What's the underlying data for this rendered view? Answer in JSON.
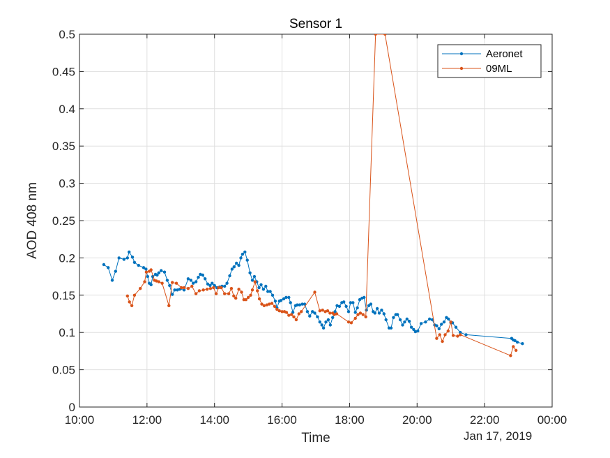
{
  "chart_data": {
    "type": "line",
    "title": "Sensor 1",
    "xlabel": "Time",
    "ylabel": "AOD 408 nm",
    "date_label": "Jan 17, 2019",
    "x_unit": "hours",
    "xlim": [
      10,
      24
    ],
    "ylim": [
      0,
      0.5
    ],
    "x_ticks": [
      10,
      12,
      14,
      16,
      18,
      20,
      22,
      24
    ],
    "x_tick_labels": [
      "10:00",
      "12:00",
      "14:00",
      "16:00",
      "18:00",
      "20:00",
      "22:00",
      "00:00"
    ],
    "y_ticks": [
      0,
      0.05,
      0.1,
      0.15,
      0.2,
      0.25,
      0.3,
      0.35,
      0.4,
      0.45,
      0.5
    ],
    "y_tick_labels": [
      "0",
      "0.05",
      "0.1",
      "0.15",
      "0.2",
      "0.25",
      "0.3",
      "0.35",
      "0.4",
      "0.45",
      "0.5"
    ],
    "grid": true,
    "legend_position": "top-right",
    "series": [
      {
        "name": "Aeronet",
        "color": "#0072BD",
        "points": [
          [
            10.72,
            0.191
          ],
          [
            10.85,
            0.187
          ],
          [
            10.97,
            0.17
          ],
          [
            11.07,
            0.182
          ],
          [
            11.17,
            0.2
          ],
          [
            11.32,
            0.198
          ],
          [
            11.42,
            0.2
          ],
          [
            11.47,
            0.208
          ],
          [
            11.57,
            0.201
          ],
          [
            11.63,
            0.194
          ],
          [
            11.75,
            0.19
          ],
          [
            11.9,
            0.187
          ],
          [
            11.97,
            0.185
          ],
          [
            12.02,
            0.175
          ],
          [
            12.07,
            0.166
          ],
          [
            12.12,
            0.164
          ],
          [
            12.17,
            0.175
          ],
          [
            12.25,
            0.178
          ],
          [
            12.3,
            0.177
          ],
          [
            12.35,
            0.18
          ],
          [
            12.42,
            0.183
          ],
          [
            12.52,
            0.181
          ],
          [
            12.6,
            0.17
          ],
          [
            12.67,
            0.163
          ],
          [
            12.75,
            0.151
          ],
          [
            12.82,
            0.157
          ],
          [
            12.9,
            0.157
          ],
          [
            12.97,
            0.158
          ],
          [
            13.1,
            0.157
          ],
          [
            13.22,
            0.172
          ],
          [
            13.3,
            0.17
          ],
          [
            13.37,
            0.166
          ],
          [
            13.45,
            0.168
          ],
          [
            13.52,
            0.174
          ],
          [
            13.58,
            0.178
          ],
          [
            13.65,
            0.177
          ],
          [
            13.72,
            0.172
          ],
          [
            13.8,
            0.165
          ],
          [
            13.87,
            0.163
          ],
          [
            13.93,
            0.166
          ],
          [
            14.0,
            0.163
          ],
          [
            14.07,
            0.16
          ],
          [
            14.15,
            0.161
          ],
          [
            14.22,
            0.162
          ],
          [
            14.3,
            0.162
          ],
          [
            14.37,
            0.166
          ],
          [
            14.45,
            0.176
          ],
          [
            14.52,
            0.185
          ],
          [
            14.58,
            0.188
          ],
          [
            14.65,
            0.193
          ],
          [
            14.72,
            0.19
          ],
          [
            14.78,
            0.2
          ],
          [
            14.83,
            0.205
          ],
          [
            14.9,
            0.208
          ],
          [
            14.97,
            0.197
          ],
          [
            15.05,
            0.18
          ],
          [
            15.12,
            0.17
          ],
          [
            15.18,
            0.175
          ],
          [
            15.25,
            0.168
          ],
          [
            15.32,
            0.16
          ],
          [
            15.38,
            0.164
          ],
          [
            15.45,
            0.158
          ],
          [
            15.52,
            0.162
          ],
          [
            15.58,
            0.155
          ],
          [
            15.65,
            0.155
          ],
          [
            15.72,
            0.15
          ],
          [
            15.8,
            0.142
          ],
          [
            15.85,
            0.133
          ],
          [
            15.92,
            0.142
          ],
          [
            15.97,
            0.143
          ],
          [
            16.05,
            0.145
          ],
          [
            16.12,
            0.147
          ],
          [
            16.2,
            0.147
          ],
          [
            16.25,
            0.14
          ],
          [
            16.32,
            0.127
          ],
          [
            16.4,
            0.136
          ],
          [
            16.45,
            0.137
          ],
          [
            16.52,
            0.137
          ],
          [
            16.6,
            0.138
          ],
          [
            16.67,
            0.138
          ],
          [
            16.75,
            0.128
          ],
          [
            16.82,
            0.122
          ],
          [
            16.9,
            0.128
          ],
          [
            16.97,
            0.126
          ],
          [
            17.05,
            0.121
          ],
          [
            17.12,
            0.114
          ],
          [
            17.18,
            0.11
          ],
          [
            17.23,
            0.106
          ],
          [
            17.3,
            0.114
          ],
          [
            17.37,
            0.117
          ],
          [
            17.43,
            0.11
          ],
          [
            17.5,
            0.12
          ],
          [
            17.57,
            0.128
          ],
          [
            17.63,
            0.136
          ],
          [
            17.7,
            0.135
          ],
          [
            17.77,
            0.14
          ],
          [
            17.83,
            0.141
          ],
          [
            17.9,
            0.135
          ],
          [
            17.97,
            0.128
          ],
          [
            18.03,
            0.14
          ],
          [
            18.1,
            0.14
          ],
          [
            18.17,
            0.127
          ],
          [
            18.23,
            0.133
          ],
          [
            18.3,
            0.144
          ],
          [
            18.37,
            0.146
          ],
          [
            18.43,
            0.147
          ],
          [
            18.5,
            0.13
          ],
          [
            18.57,
            0.136
          ],
          [
            18.63,
            0.138
          ],
          [
            18.7,
            0.128
          ],
          [
            18.75,
            0.126
          ],
          [
            18.82,
            0.132
          ],
          [
            18.88,
            0.126
          ],
          [
            18.95,
            0.13
          ],
          [
            19.02,
            0.125
          ],
          [
            19.08,
            0.117
          ],
          [
            19.17,
            0.106
          ],
          [
            19.23,
            0.106
          ],
          [
            19.3,
            0.12
          ],
          [
            19.37,
            0.124
          ],
          [
            19.42,
            0.124
          ],
          [
            19.5,
            0.117
          ],
          [
            19.57,
            0.11
          ],
          [
            19.63,
            0.114
          ],
          [
            19.7,
            0.118
          ],
          [
            19.77,
            0.115
          ],
          [
            19.83,
            0.107
          ],
          [
            19.9,
            0.104
          ],
          [
            19.95,
            0.101
          ],
          [
            20.02,
            0.102
          ],
          [
            20.12,
            0.112
          ],
          [
            20.25,
            0.114
          ],
          [
            20.37,
            0.118
          ],
          [
            20.45,
            0.117
          ],
          [
            20.52,
            0.11
          ],
          [
            20.58,
            0.109
          ],
          [
            20.65,
            0.105
          ],
          [
            20.72,
            0.111
          ],
          [
            20.8,
            0.114
          ],
          [
            20.87,
            0.12
          ],
          [
            20.93,
            0.118
          ],
          [
            21.0,
            0.113
          ],
          [
            21.05,
            0.113
          ],
          [
            21.15,
            0.107
          ],
          [
            21.28,
            0.1
          ],
          [
            21.45,
            0.097
          ],
          [
            22.8,
            0.092
          ],
          [
            22.85,
            0.09
          ],
          [
            22.9,
            0.089
          ],
          [
            22.97,
            0.087
          ],
          [
            23.12,
            0.085
          ]
        ]
      },
      {
        "name": "09ML",
        "color": "#D95319",
        "points": [
          [
            11.42,
            0.149
          ],
          [
            11.48,
            0.141
          ],
          [
            11.55,
            0.136
          ],
          [
            11.63,
            0.15
          ],
          [
            11.8,
            0.159
          ],
          [
            11.93,
            0.168
          ],
          [
            11.98,
            0.181
          ],
          [
            12.07,
            0.182
          ],
          [
            12.12,
            0.184
          ],
          [
            12.22,
            0.17
          ],
          [
            12.28,
            0.169
          ],
          [
            12.35,
            0.168
          ],
          [
            12.45,
            0.166
          ],
          [
            12.65,
            0.136
          ],
          [
            12.75,
            0.167
          ],
          [
            12.87,
            0.166
          ],
          [
            13.02,
            0.16
          ],
          [
            13.1,
            0.16
          ],
          [
            13.22,
            0.159
          ],
          [
            13.33,
            0.162
          ],
          [
            13.45,
            0.152
          ],
          [
            13.55,
            0.156
          ],
          [
            13.67,
            0.157
          ],
          [
            13.78,
            0.158
          ],
          [
            13.88,
            0.159
          ],
          [
            13.97,
            0.16
          ],
          [
            14.05,
            0.152
          ],
          [
            14.12,
            0.16
          ],
          [
            14.2,
            0.16
          ],
          [
            14.3,
            0.152
          ],
          [
            14.42,
            0.152
          ],
          [
            14.5,
            0.159
          ],
          [
            14.57,
            0.149
          ],
          [
            14.63,
            0.146
          ],
          [
            14.72,
            0.158
          ],
          [
            14.8,
            0.154
          ],
          [
            14.87,
            0.144
          ],
          [
            14.93,
            0.144
          ],
          [
            15.0,
            0.147
          ],
          [
            15.07,
            0.15
          ],
          [
            15.12,
            0.157
          ],
          [
            15.2,
            0.168
          ],
          [
            15.27,
            0.156
          ],
          [
            15.33,
            0.145
          ],
          [
            15.4,
            0.138
          ],
          [
            15.47,
            0.136
          ],
          [
            15.55,
            0.137
          ],
          [
            15.62,
            0.138
          ],
          [
            15.7,
            0.139
          ],
          [
            15.78,
            0.135
          ],
          [
            15.85,
            0.131
          ],
          [
            15.92,
            0.129
          ],
          [
            16.0,
            0.128
          ],
          [
            16.07,
            0.128
          ],
          [
            16.13,
            0.127
          ],
          [
            16.2,
            0.123
          ],
          [
            16.28,
            0.124
          ],
          [
            16.35,
            0.121
          ],
          [
            16.42,
            0.117
          ],
          [
            16.5,
            0.125
          ],
          [
            16.57,
            0.128
          ],
          [
            16.97,
            0.154
          ],
          [
            17.12,
            0.129
          ],
          [
            17.2,
            0.13
          ],
          [
            17.28,
            0.128
          ],
          [
            17.35,
            0.129
          ],
          [
            17.42,
            0.126
          ],
          [
            17.5,
            0.126
          ],
          [
            17.55,
            0.124
          ],
          [
            17.62,
            0.125
          ],
          [
            17.97,
            0.114
          ],
          [
            18.05,
            0.113
          ],
          [
            18.17,
            0.119
          ],
          [
            18.25,
            0.124
          ],
          [
            18.32,
            0.126
          ],
          [
            18.4,
            0.124
          ],
          [
            18.48,
            0.121
          ],
          [
            18.77,
            0.5
          ],
          [
            19.05,
            0.5
          ],
          [
            20.58,
            0.092
          ],
          [
            20.67,
            0.097
          ],
          [
            20.75,
            0.088
          ],
          [
            20.83,
            0.097
          ],
          [
            20.92,
            0.102
          ],
          [
            21.0,
            0.114
          ],
          [
            21.07,
            0.096
          ],
          [
            21.2,
            0.095
          ],
          [
            21.28,
            0.097
          ],
          [
            22.77,
            0.069
          ],
          [
            22.85,
            0.081
          ],
          [
            22.93,
            0.076
          ]
        ]
      }
    ]
  }
}
